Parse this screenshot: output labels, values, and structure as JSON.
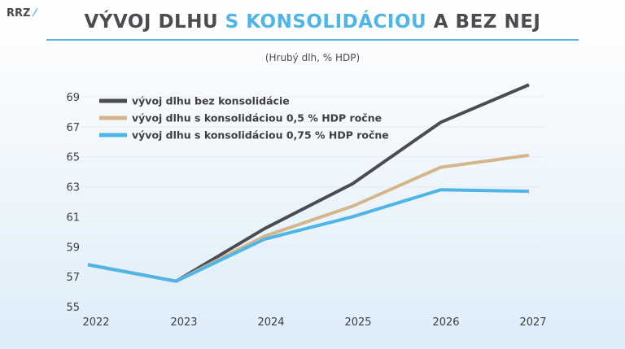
{
  "logo": {
    "text": "RRZ"
  },
  "title": {
    "part1": "VÝVOJ DLHU ",
    "highlight": "S KONSOLIDÁCIOU",
    "part2": " A BEZ NEJ"
  },
  "subtitle": "(Hrubý dlh, % HDP)",
  "chart_data": {
    "type": "line",
    "title": "VÝVOJ DLHU S KONSOLIDÁCIOU A BEZ NEJ",
    "subtitle": "(Hrubý dlh, % HDP)",
    "x": [
      "2022",
      "2023",
      "2024",
      "2025",
      "2026",
      "2027"
    ],
    "ylim": [
      55,
      69
    ],
    "yticks": [
      55,
      57,
      59,
      61,
      63,
      65,
      67,
      69
    ],
    "grid": true,
    "legend": "top-left",
    "series": [
      {
        "name": "vývoj dlhu bez konsolidácie",
        "color": "#4b4b50",
        "values": [
          57.8,
          56.7,
          60.2,
          63.2,
          67.3,
          69.8
        ]
      },
      {
        "name": "vývoj dlhu s konsolidáciou 0,5 % HDP ročne",
        "color": "#d4b68a",
        "values": [
          57.8,
          56.7,
          59.7,
          61.7,
          64.3,
          65.1
        ]
      },
      {
        "name": "vývoj dlhu s konsolidáciou 0,75 %  HDP ročne",
        "color": "#4fb4e6",
        "values": [
          57.8,
          56.7,
          59.5,
          61.0,
          62.8,
          62.7
        ]
      }
    ]
  }
}
